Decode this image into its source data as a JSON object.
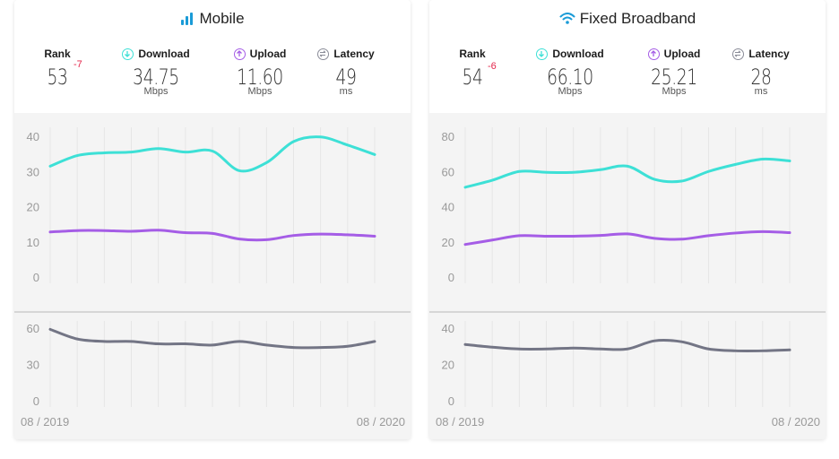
{
  "panels": [
    {
      "title": "Mobile",
      "icon": "signal-bars-icon",
      "rank_label": "Rank",
      "rank": "53",
      "rank_change": "-7",
      "download_label": "Download",
      "download": "34.75",
      "upload_label": "Upload",
      "upload": "11.60",
      "latency_label": "Latency",
      "latency": "49",
      "speed_unit": "Mbps",
      "latency_unit": "ms"
    },
    {
      "title": "Fixed Broadband",
      "icon": "wifi-icon",
      "rank_label": "Rank",
      "rank": "54",
      "rank_change": "-6",
      "download_label": "Download",
      "download": "66.10",
      "upload_label": "Upload",
      "upload": "25.21",
      "latency_label": "Latency",
      "latency": "28",
      "speed_unit": "Mbps",
      "latency_unit": "ms"
    }
  ],
  "colors": {
    "download": "#3de0d6",
    "upload": "#a55de6",
    "latency": "#737585",
    "rank_change": "#e4264b",
    "title_icon": "#1a9bd7"
  },
  "chart_data": [
    {
      "type": "line",
      "panel": "Mobile",
      "x_labels": [
        "08 / 2019",
        "08 / 2020"
      ],
      "x": [
        "2019-08",
        "2019-09",
        "2019-10",
        "2019-11",
        "2019-12",
        "2020-01",
        "2020-02",
        "2020-03",
        "2020-04",
        "2020-05",
        "2020-06",
        "2020-07",
        "2020-08"
      ],
      "speed_axis": {
        "ylim": [
          0,
          40
        ],
        "ticks": [
          0,
          10,
          20,
          30,
          40
        ]
      },
      "latency_axis": {
        "ylim": [
          0,
          60
        ],
        "ticks": [
          0,
          30,
          60
        ]
      },
      "series": [
        {
          "name": "Download",
          "values": [
            31.5,
            34.5,
            35.3,
            35.5,
            36.5,
            35.5,
            35.8,
            30.2,
            32.5,
            38.5,
            39.8,
            37.5,
            34.8
          ]
        },
        {
          "name": "Upload",
          "values": [
            12.8,
            13.2,
            13.2,
            13.0,
            13.3,
            12.6,
            12.4,
            10.8,
            10.6,
            11.8,
            12.2,
            12.0,
            11.6
          ]
        },
        {
          "name": "Latency",
          "values": [
            59,
            51,
            49,
            49,
            47,
            47,
            46,
            49,
            46,
            44,
            44,
            45,
            49
          ]
        }
      ]
    },
    {
      "type": "line",
      "panel": "Fixed Broadband",
      "x_labels": [
        "08 / 2019",
        "08 / 2020"
      ],
      "x": [
        "2019-08",
        "2019-09",
        "2019-10",
        "2019-11",
        "2019-12",
        "2020-01",
        "2020-02",
        "2020-03",
        "2020-04",
        "2020-05",
        "2020-06",
        "2020-07",
        "2020-08"
      ],
      "speed_axis": {
        "ylim": [
          0,
          80
        ],
        "ticks": [
          0,
          20,
          40,
          60,
          80
        ]
      },
      "latency_axis": {
        "ylim": [
          0,
          40
        ],
        "ticks": [
          0,
          20,
          40
        ]
      },
      "series": [
        {
          "name": "Download",
          "values": [
            51,
            55,
            60,
            59.5,
            59.5,
            61,
            63,
            55.5,
            54.5,
            60,
            64,
            67,
            66
          ]
        },
        {
          "name": "Upload",
          "values": [
            18.5,
            21,
            23.5,
            23.2,
            23.2,
            23.6,
            24.5,
            22,
            21.5,
            23.5,
            25,
            25.8,
            25.2
          ]
        },
        {
          "name": "Latency",
          "values": [
            31,
            29.5,
            28.5,
            28.5,
            29,
            28.5,
            28.5,
            33,
            32.5,
            28.5,
            27.5,
            27.5,
            28
          ]
        }
      ]
    }
  ]
}
